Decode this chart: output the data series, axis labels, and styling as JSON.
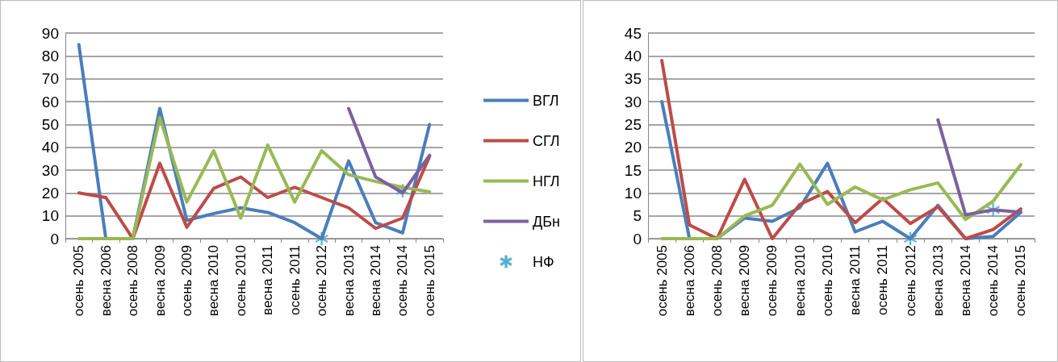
{
  "chart_data": [
    {
      "type": "line",
      "categories": [
        "осень 2005",
        "весна 2006",
        "осень 2008",
        "весна 2009",
        "осень 2009",
        "весна 2010",
        "осень 2010",
        "весна 2011",
        "осень 2011",
        "осень 2012",
        "весна 2013",
        "весна 2014",
        "осень 2014",
        "осень 2015"
      ],
      "series": [
        {
          "name": "ВГЛ",
          "color": "#4a7ebb",
          "values": [
            85,
            0,
            0,
            57,
            8,
            11,
            13.5,
            11.5,
            7,
            0,
            34,
            7,
            2.5,
            50
          ]
        },
        {
          "name": "СГЛ",
          "color": "#be4b48",
          "values": [
            20,
            18,
            0,
            33,
            5,
            22,
            27,
            18,
            22.5,
            18,
            13.5,
            4.5,
            9,
            36
          ]
        },
        {
          "name": "НГЛ",
          "color": "#98b954",
          "values": [
            0,
            0,
            0,
            53,
            16,
            38.5,
            9,
            41,
            16,
            38.5,
            28,
            25,
            22.5,
            20.5
          ]
        },
        {
          "name": "ДБн",
          "color": "#7d60a0",
          "values": [
            null,
            null,
            null,
            null,
            null,
            null,
            null,
            null,
            null,
            null,
            57,
            27,
            20,
            36.5
          ]
        },
        {
          "name": "НФ",
          "type": "scatter",
          "color": "#46aac5",
          "marker": "star",
          "values": [
            null,
            null,
            null,
            null,
            null,
            null,
            null,
            null,
            null,
            0,
            null,
            null,
            21,
            null
          ]
        }
      ],
      "ylim": [
        0,
        90
      ],
      "yticks": [
        0,
        10,
        20,
        30,
        40,
        50,
        60,
        70,
        80,
        90
      ],
      "grid": "y",
      "legend": "right",
      "marker": "none",
      "line_style": "solid"
    },
    {
      "type": "line",
      "categories": [
        "осень 2005",
        "весна 2006",
        "осень 2008",
        "весна 2009",
        "осень 2009",
        "весна 2010",
        "осень 2010",
        "весна 2011",
        "осень 2011",
        "осень 2012",
        "весна 2013",
        "весна 2014",
        "осень 2014",
        "осень 2015"
      ],
      "series": [
        {
          "color": "#4a7ebb",
          "values": [
            30,
            0,
            0,
            4.5,
            3.8,
            6.8,
            16.5,
            1.5,
            3.8,
            0,
            7.3,
            0,
            0.5,
            5.8
          ]
        },
        {
          "color": "#be4b48",
          "values": [
            39,
            3,
            0,
            13,
            0,
            7.5,
            10.3,
            3.5,
            8.8,
            3.3,
            7,
            0,
            2,
            6.5
          ]
        },
        {
          "color": "#98b954",
          "values": [
            0,
            0,
            0,
            5,
            7.3,
            16.3,
            7.5,
            11.3,
            8.5,
            10.7,
            12.2,
            4.2,
            8.2,
            16.2
          ]
        },
        {
          "color": "#7d60a0",
          "values": [
            null,
            null,
            null,
            null,
            null,
            null,
            null,
            null,
            null,
            null,
            26,
            5.2,
            6.3,
            5.8
          ]
        },
        {
          "type": "scatter",
          "color": "#46aac5",
          "marker": "star",
          "values": [
            null,
            null,
            null,
            null,
            null,
            null,
            null,
            null,
            null,
            0,
            null,
            null,
            6.3,
            null
          ]
        }
      ],
      "ylim": [
        0,
        45
      ],
      "yticks": [
        0,
        5,
        10,
        15,
        20,
        25,
        30,
        35,
        40,
        45
      ],
      "grid": "y",
      "legend": false,
      "marker": "none",
      "line_style": "solid"
    }
  ]
}
